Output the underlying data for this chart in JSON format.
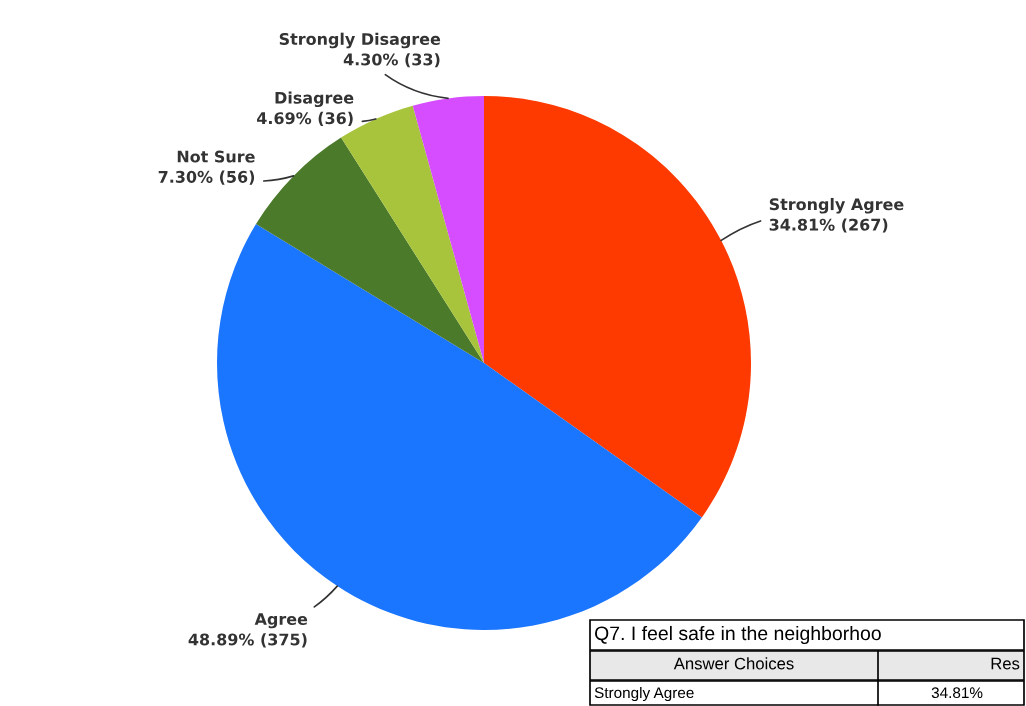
{
  "chart_data": {
    "type": "pie",
    "categories": [
      "Strongly Agree",
      "Agree",
      "Not Sure",
      "Disagree",
      "Strongly Disagree"
    ],
    "values": [
      34.81,
      48.89,
      7.3,
      4.69,
      4.3
    ],
    "value_labels": [
      "34.81% (267)",
      "48.89% (375)",
      "7.30% (56)",
      "4.69% (36)",
      "4.30% (33)"
    ],
    "colors": [
      "#ff3a00",
      "#1a75ff",
      "#4a7a2a",
      "#a8c43c",
      "#d64dff"
    ],
    "annotations": [
      "Q7. I feel safe in the neighborhoo",
      "Answer Choices",
      "Res",
      "Strongly Agree",
      "34.81%"
    ]
  }
}
